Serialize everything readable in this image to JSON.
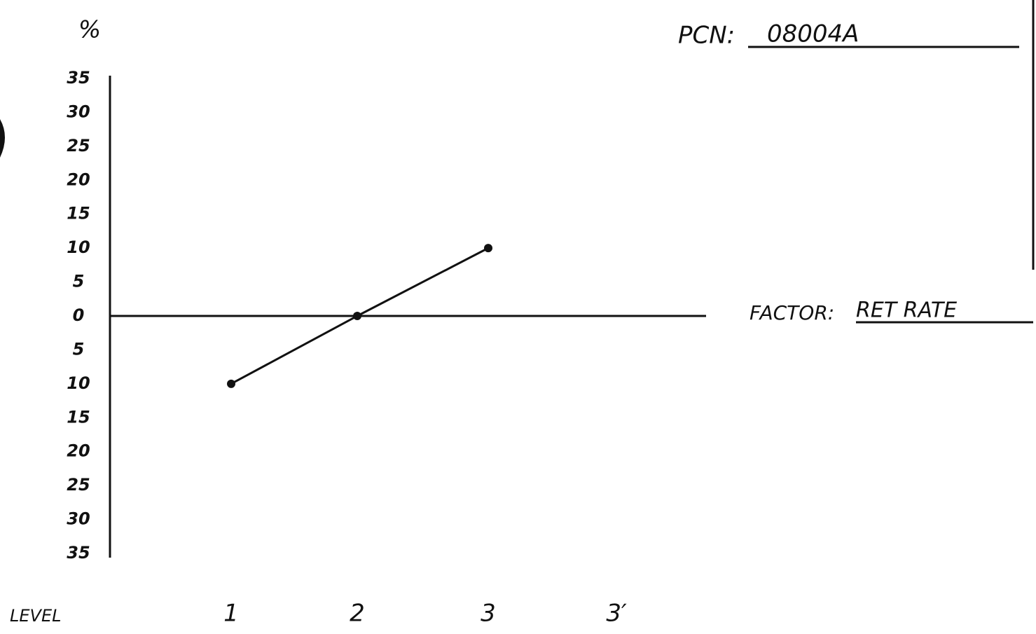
{
  "chart_data": {
    "type": "line",
    "y_label": "%",
    "x_label": "LEVEL",
    "categories": [
      "1",
      "2",
      "3",
      "3′"
    ],
    "values": [
      -10,
      0,
      10,
      null
    ],
    "color": "#111111",
    "ylim": [
      -35,
      35
    ],
    "yticks": [
      35,
      30,
      25,
      20,
      15,
      10,
      5,
      0,
      {
        "value": -5,
        "label": "5"
      },
      {
        "value": -10,
        "label": "10"
      },
      {
        "value": -15,
        "label": "15"
      },
      {
        "value": -20,
        "label": "20"
      },
      {
        "value": -25,
        "label": "25"
      },
      {
        "value": -30,
        "label": "30"
      },
      {
        "value": -35,
        "label": "35"
      }
    ],
    "annotations": [
      {
        "label": "PCN:",
        "text": "08004A"
      },
      {
        "label": "FACTOR:",
        "text": "RET RATE"
      }
    ]
  }
}
